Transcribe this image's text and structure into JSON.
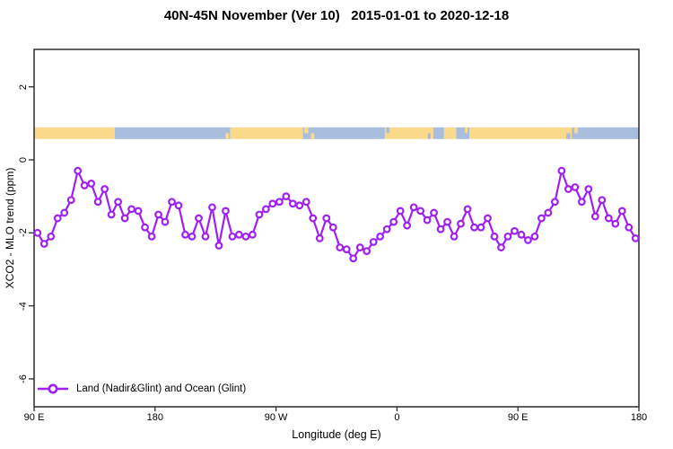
{
  "title": "40N-45N November (Ver 10)   2015-01-01 to 2020-12-18",
  "legend": {
    "label": "Land (Nadir&Glint) and Ocean (Glint)",
    "marker": "open-circle",
    "color": "#A020F0"
  },
  "chart_data": {
    "type": "line",
    "title": "40N-45N November (Ver 10)   2015-01-01 to 2020-12-18",
    "xlabel": "Longitude (deg E)",
    "ylabel": "XCO2 - MLO trend (ppm)",
    "xlim": [
      90,
      540
    ],
    "ylim": [
      -6.8,
      3.0
    ],
    "grid": false,
    "legend_position": "bottom-left",
    "x_ticks": {
      "positions": [
        90,
        180,
        270,
        360,
        450,
        540
      ],
      "labels": [
        "90 E",
        "180",
        "90 W",
        "0",
        "90 E",
        "180"
      ]
    },
    "y_ticks": {
      "positions": [
        2,
        0,
        -2,
        -4,
        -6
      ],
      "labels": [
        "2",
        "0",
        "-2",
        "-4",
        "-6"
      ]
    },
    "series": [
      {
        "name": "Land (Nadir&Glint) and Ocean (Glint)",
        "color": "#A020F0",
        "marker": "open-circle",
        "x": [
          92.5,
          97.5,
          102.5,
          107.5,
          112.5,
          117.5,
          122.5,
          127.5,
          132.5,
          137.5,
          142.5,
          147.5,
          152.5,
          157.5,
          162.5,
          167.5,
          172.5,
          177.5,
          182.5,
          187.5,
          192.5,
          197.5,
          202.5,
          207.5,
          212.5,
          217.5,
          222.5,
          227.5,
          232.5,
          237.5,
          242.5,
          247.5,
          252.5,
          257.5,
          262.5,
          267.5,
          272.5,
          277.5,
          282.5,
          287.5,
          292.5,
          297.5,
          302.5,
          307.5,
          312.5,
          317.5,
          322.5,
          327.5,
          332.5,
          337.5,
          342.5,
          347.5,
          352.5,
          357.5,
          362.5,
          367.5,
          372.5,
          377.5,
          382.5,
          387.5,
          392.5,
          397.5,
          402.5,
          407.5,
          412.5,
          417.5,
          422.5,
          427.5,
          432.5,
          437.5,
          442.5,
          447.5,
          452.5,
          457.5,
          462.5,
          467.5,
          472.5,
          477.5,
          482.5,
          487.5,
          492.5,
          497.5,
          502.5,
          507.5,
          512.5,
          517.5,
          522.5,
          527.5,
          532.5,
          537.5
        ],
        "y": [
          -2.0,
          -2.3,
          -2.1,
          -1.6,
          -1.45,
          -1.1,
          -0.3,
          -0.7,
          -0.65,
          -1.15,
          -0.8,
          -1.5,
          -1.15,
          -1.6,
          -1.35,
          -1.4,
          -1.85,
          -2.1,
          -1.5,
          -1.7,
          -1.15,
          -1.25,
          -2.05,
          -2.1,
          -1.6,
          -2.1,
          -1.3,
          -2.35,
          -1.4,
          -2.1,
          -2.05,
          -2.1,
          -2.05,
          -1.5,
          -1.35,
          -1.2,
          -1.15,
          -1.0,
          -1.2,
          -1.25,
          -1.15,
          -1.6,
          -2.15,
          -1.6,
          -1.85,
          -2.4,
          -2.45,
          -2.7,
          -2.4,
          -2.5,
          -2.25,
          -2.1,
          -1.9,
          -1.7,
          -1.4,
          -1.8,
          -1.3,
          -1.4,
          -1.65,
          -1.45,
          -1.9,
          -1.7,
          -2.1,
          -1.75,
          -1.35,
          -1.85,
          -1.85,
          -1.6,
          -2.1,
          -2.4,
          -2.1,
          -1.95,
          -2.05,
          -2.2,
          -2.1,
          -1.6,
          -1.45,
          -1.15,
          -0.3,
          -0.8,
          -0.75,
          -1.15,
          -0.8,
          -1.55,
          -1.1,
          -1.6,
          -1.75,
          -1.4,
          -1.85,
          -2.15
        ]
      }
    ],
    "surface_band": {
      "y_range": [
        0.57,
        0.89
      ],
      "land_color": "#FBD98B",
      "ocean_color": "#A9BEDC",
      "segments": [
        {
          "from": 90,
          "to": 150,
          "surface": "land"
        },
        {
          "from": 150,
          "to": 236,
          "surface": "ocean"
        },
        {
          "from": 236,
          "to": 290,
          "surface": "land"
        },
        {
          "from": 290,
          "to": 351,
          "surface": "ocean"
        },
        {
          "from": 351,
          "to": 387,
          "surface": "land"
        },
        {
          "from": 387,
          "to": 395,
          "surface": "ocean"
        },
        {
          "from": 395,
          "to": 404,
          "surface": "land"
        },
        {
          "from": 404,
          "to": 414,
          "surface": "ocean"
        },
        {
          "from": 414,
          "to": 490,
          "surface": "land"
        },
        {
          "from": 490,
          "to": 540,
          "surface": "ocean"
        }
      ],
      "coast_patches": [
        {
          "lon": 142,
          "w_deg": 3,
          "surface": "land",
          "valign": "bottom"
        },
        {
          "lon": 147,
          "w_deg": 2.5,
          "surface": "land",
          "valign": "top"
        },
        {
          "lon": 232.5,
          "w_deg": 2.5,
          "surface": "land",
          "valign": "bottom"
        },
        {
          "lon": 291,
          "w_deg": 3,
          "surface": "land",
          "valign": "top"
        },
        {
          "lon": 296,
          "w_deg": 2.5,
          "surface": "land",
          "valign": "bottom"
        },
        {
          "lon": 352,
          "w_deg": 2.5,
          "surface": "ocean",
          "valign": "top"
        },
        {
          "lon": 383,
          "w_deg": 2,
          "surface": "ocean",
          "valign": "bottom"
        },
        {
          "lon": 410.5,
          "w_deg": 2,
          "surface": "land",
          "valign": "top"
        },
        {
          "lon": 486,
          "w_deg": 3,
          "surface": "ocean",
          "valign": "bottom"
        },
        {
          "lon": 492,
          "w_deg": 2.5,
          "surface": "land",
          "valign": "top"
        }
      ]
    }
  }
}
